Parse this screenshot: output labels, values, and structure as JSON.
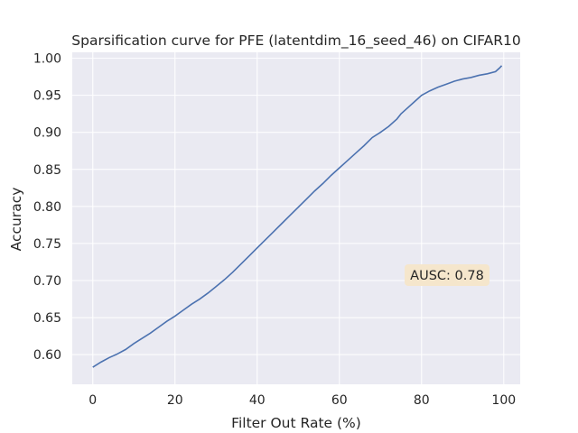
{
  "chart_data": {
    "type": "line",
    "title": "Sparsification curve for PFE (latentdim_16_seed_46) on CIFAR10",
    "xlabel": "Filter Out Rate (%)",
    "ylabel": "Accuracy",
    "xlim": [
      -5,
      104
    ],
    "ylim": [
      0.56,
      1.008
    ],
    "xticks": [
      0,
      20,
      40,
      60,
      80,
      100
    ],
    "xtick_labels": [
      "0",
      "20",
      "40",
      "60",
      "80",
      "100"
    ],
    "yticks": [
      0.6,
      0.65,
      0.7,
      0.75,
      0.8,
      0.85,
      0.9,
      0.95,
      1.0
    ],
    "ytick_labels": [
      "0.60",
      "0.65",
      "0.70",
      "0.75",
      "0.80",
      "0.85",
      "0.90",
      "0.95",
      "1.00"
    ],
    "grid": true,
    "annotation": "AUSC: 0.78",
    "colors": {
      "line": "#4c72b0",
      "background": "#eaeaf2",
      "grid": "#ffffff",
      "annotation_box": "#f5e6cc"
    },
    "series": [
      {
        "x": [
          0,
          2,
          4,
          6,
          8,
          10,
          12,
          14,
          16,
          18,
          20,
          22,
          24,
          26,
          28,
          30,
          32,
          34,
          36,
          38,
          40,
          42,
          44,
          46,
          48,
          50,
          52,
          54,
          56,
          58,
          60,
          62,
          64,
          66,
          68,
          70,
          72,
          74,
          75,
          76,
          78,
          80,
          82,
          84,
          86,
          88,
          90,
          92,
          94,
          96,
          98,
          99,
          99.5
        ],
        "y": [
          0.583,
          0.59,
          0.596,
          0.601,
          0.607,
          0.615,
          0.622,
          0.629,
          0.637,
          0.645,
          0.652,
          0.66,
          0.668,
          0.675,
          0.683,
          0.692,
          0.701,
          0.711,
          0.722,
          0.733,
          0.744,
          0.755,
          0.766,
          0.777,
          0.788,
          0.799,
          0.81,
          0.821,
          0.831,
          0.842,
          0.852,
          0.862,
          0.872,
          0.882,
          0.893,
          0.9,
          0.908,
          0.918,
          0.925,
          0.93,
          0.94,
          0.95,
          0.956,
          0.961,
          0.965,
          0.969,
          0.972,
          0.974,
          0.977,
          0.979,
          0.982,
          0.987,
          0.99
        ]
      }
    ]
  }
}
